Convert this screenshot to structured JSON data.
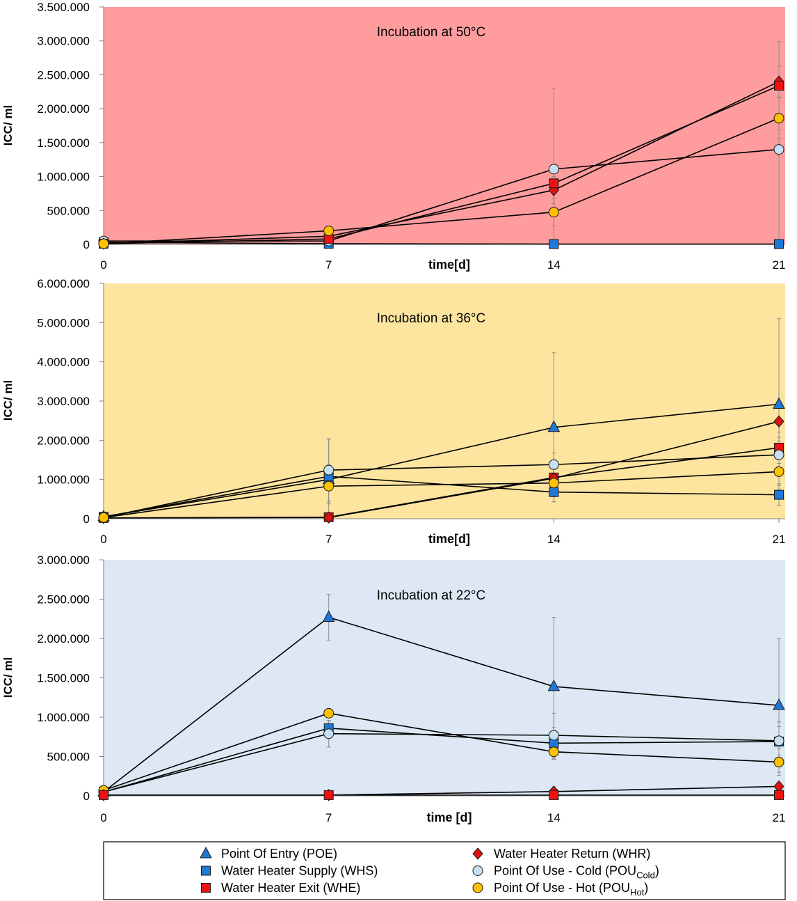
{
  "chart_data": [
    {
      "type": "line",
      "title": "Incubation at 50°C",
      "xlabel": "time[d]",
      "ylabel": "ICC/ ml",
      "bg": "#ff9c9e",
      "x": [
        0,
        7,
        14,
        21
      ],
      "xticks": [
        "0",
        "7",
        "14",
        "21"
      ],
      "ylim": [
        0,
        3500000
      ],
      "yticks": [
        0,
        500000,
        1000000,
        1500000,
        2000000,
        2500000,
        3000000,
        3500000
      ],
      "ytick_labels": [
        "0",
        "500.000",
        "1.000.000",
        "1.500.000",
        "2.000.000",
        "2.500.000",
        "3.000.000",
        "3.500.000"
      ],
      "series": [
        {
          "name": "Water Heater Supply (WHS)",
          "values": [
            30000,
            10000,
            5000,
            5000
          ],
          "errors": [
            null,
            null,
            null,
            null
          ]
        },
        {
          "name": "Point Of Use - Cold (POUCold)",
          "values": [
            50000,
            50000,
            1110000,
            1400000
          ],
          "errors": [
            null,
            null,
            1190000,
            1590000
          ]
        },
        {
          "name": "Water Heater Return (WHR)",
          "values": [
            10000,
            120000,
            800000,
            2400000
          ],
          "errors": [
            null,
            null,
            200000,
            230000
          ]
        },
        {
          "name": "Water Heater Exit (WHE)",
          "values": [
            10000,
            80000,
            900000,
            2340000
          ],
          "errors": [
            null,
            null,
            150000,
            650000
          ]
        },
        {
          "name": "Point Of Use - Hot (POUHot)",
          "values": [
            10000,
            200000,
            475000,
            1860000
          ],
          "errors": [
            null,
            null,
            200000,
            300000
          ]
        }
      ]
    },
    {
      "type": "line",
      "title": "Incubation at 36°C",
      "xlabel": "time[d]",
      "ylabel": "ICC/ ml",
      "bg": "#fde59f",
      "x": [
        0,
        7,
        14,
        21
      ],
      "xticks": [
        "0",
        "7",
        "14",
        "21"
      ],
      "ylim": [
        0,
        6000000
      ],
      "yticks": [
        0,
        1000000,
        2000000,
        3000000,
        4000000,
        5000000,
        6000000
      ],
      "ytick_labels": [
        "0",
        "1.000.000",
        "2.000.000",
        "3.000.000",
        "4.000.000",
        "5.000.000",
        "6.000.000"
      ],
      "series": [
        {
          "name": "Point Of Entry (POE)",
          "values": [
            50000,
            1000000,
            2330000,
            2920000
          ],
          "errors": [
            null,
            1030000,
            1900000,
            2180000
          ]
        },
        {
          "name": "Water Heater Supply (WHS)",
          "values": [
            50000,
            1080000,
            680000,
            610000
          ],
          "errors": [
            null,
            300000,
            250000,
            280000
          ]
        },
        {
          "name": "Water Heater Exit (WHE)",
          "values": [
            20000,
            40000,
            1050000,
            1810000
          ],
          "errors": [
            null,
            null,
            300000,
            400000
          ]
        },
        {
          "name": "Water Heater Return (WHR)",
          "values": [
            20000,
            30000,
            1030000,
            2480000
          ],
          "errors": [
            null,
            null,
            300000,
            400000
          ]
        },
        {
          "name": "Point Of Use - Cold (POUCold)",
          "values": [
            30000,
            1240000,
            1380000,
            1630000
          ],
          "errors": [
            null,
            800000,
            300000,
            350000
          ]
        },
        {
          "name": "Point Of Use - Hot (POUHot)",
          "values": [
            30000,
            830000,
            910000,
            1200000
          ],
          "errors": [
            null,
            450000,
            350000,
            350000
          ]
        }
      ]
    },
    {
      "type": "line",
      "title": "Incubation at 22°C",
      "xlabel": "time [d]",
      "ylabel": "ICC/ ml",
      "bg": "#dde8f4",
      "x": [
        0,
        7,
        14,
        21
      ],
      "xticks": [
        "0",
        "7",
        "14",
        "21"
      ],
      "ylim": [
        0,
        3000000
      ],
      "yticks": [
        0,
        500000,
        1000000,
        1500000,
        2000000,
        2500000,
        3000000
      ],
      "ytick_labels": [
        "0",
        "500.000",
        "1.000.000",
        "1.500.000",
        "2.000.000",
        "2.500.000",
        "3.000.000"
      ],
      "series": [
        {
          "name": "Point Of Entry (POE)",
          "values": [
            50000,
            2270000,
            1390000,
            1150000
          ],
          "errors": [
            null,
            290000,
            880000,
            850000
          ]
        },
        {
          "name": "Water Heater Supply (WHS)",
          "values": [
            50000,
            860000,
            670000,
            690000
          ],
          "errors": [
            null,
            100000,
            200000,
            250000
          ]
        },
        {
          "name": "Point Of Use - Cold (POUCold)",
          "values": [
            50000,
            790000,
            770000,
            700000
          ],
          "errors": [
            null,
            170000,
            280000,
            180000
          ]
        },
        {
          "name": "Point Of Use - Hot (POUHot)",
          "values": [
            70000,
            1050000,
            560000,
            430000
          ],
          "errors": [
            null,
            null,
            100000,
            170000
          ]
        },
        {
          "name": "Water Heater Return (WHR)",
          "values": [
            10000,
            10000,
            55000,
            120000
          ],
          "errors": [
            null,
            null,
            null,
            null
          ]
        },
        {
          "name": "Water Heater Exit (WHE)",
          "values": [
            10000,
            10000,
            10000,
            10000
          ],
          "errors": [
            null,
            null,
            null,
            null
          ]
        }
      ]
    }
  ],
  "legend": {
    "left": [
      {
        "label": "Point Of Entry (POE)",
        "marker": "triangle",
        "color": "#1f78d6"
      },
      {
        "label": "Water Heater Supply (WHS)",
        "marker": "square",
        "color": "#1f78d6"
      },
      {
        "label": "Water Heater Exit (WHE)",
        "marker": "square",
        "color": "#ee1111"
      }
    ],
    "right": [
      {
        "label": "Water Heater Return (WHR)",
        "marker": "diamond",
        "color": "#dd1111"
      },
      {
        "label": "Point Of Use - Cold (POU",
        "sub": "Cold",
        "suffix": ")",
        "marker": "circle",
        "color": "#c7dff2"
      },
      {
        "label": "Point Of Use - Hot (POU",
        "sub": "Hot",
        "suffix": ")",
        "marker": "circle",
        "color": "#ffc000"
      }
    ]
  },
  "series_styles": {
    "Point Of Entry (POE)": {
      "marker": "triangle",
      "color": "#1f78d6"
    },
    "Water Heater Supply (WHS)": {
      "marker": "square",
      "color": "#1f78d6"
    },
    "Water Heater Exit (WHE)": {
      "marker": "square",
      "color": "#ee1111"
    },
    "Water Heater Return (WHR)": {
      "marker": "diamond",
      "color": "#dd1111"
    },
    "Point Of Use - Cold (POUCold)": {
      "marker": "circle",
      "color": "#c7dff2"
    },
    "Point Of Use - Hot (POUHot)": {
      "marker": "circle",
      "color": "#ffc000"
    }
  }
}
